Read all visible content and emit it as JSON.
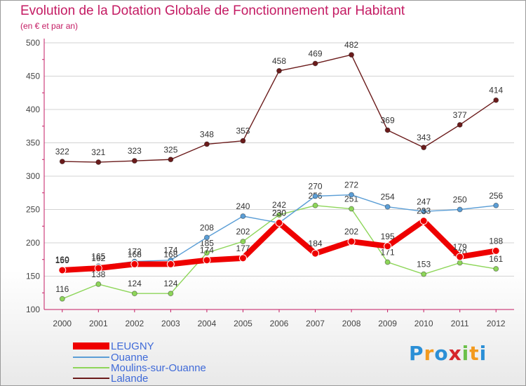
{
  "header": {
    "title": "Evolution de la Dotation Globale de Fonctionnement par Habitant",
    "subtitle": "(en € et par an)"
  },
  "colors": {
    "title": "#c41b63",
    "axis": "#c41b63",
    "grid": "#d3d3d3",
    "legend_text": "#3f6ad8",
    "data_label": "#333333"
  },
  "chart_data": {
    "type": "line",
    "x": [
      "2000",
      "2001",
      "2002",
      "2003",
      "2004",
      "2005",
      "2006",
      "2007",
      "2008",
      "2009",
      "2010",
      "2011",
      "2012"
    ],
    "ylim": [
      100,
      500
    ],
    "yticks": [
      100,
      150,
      200,
      250,
      300,
      350,
      400,
      450,
      500
    ],
    "grid": true,
    "legend_position": "bottom-left",
    "series": [
      {
        "name": "Lalande",
        "color": "#6b1b1b",
        "values": [
          322,
          321,
          323,
          325,
          348,
          353,
          458,
          469,
          482,
          369,
          343,
          377,
          414
        ]
      },
      {
        "name": "Moulins-sur-Ouanne",
        "color": "#8ed65a",
        "values": [
          116,
          138,
          124,
          124,
          185,
          202,
          242,
          256,
          251,
          171,
          153,
          170,
          161
        ]
      },
      {
        "name": "Ouanne",
        "color": "#5b9ed6",
        "values": [
          160,
          165,
          172,
          174,
          208,
          240,
          230,
          270,
          272,
          254,
          247,
          250,
          256
        ]
      },
      {
        "name": "LEUGNY",
        "color": "#ee0000",
        "values": [
          159,
          162,
          168,
          168,
          174,
          177,
          230,
          184,
          202,
          195,
          233,
          179,
          188
        ]
      }
    ]
  },
  "legend": {
    "items": [
      "LEUGNY",
      "Ouanne",
      "Moulins-sur-Ouanne",
      "Lalande"
    ]
  },
  "brand": {
    "letters": [
      "P",
      "r",
      "o",
      "x",
      "i",
      "t",
      "i"
    ],
    "colors": [
      "#2b8fd6",
      "#f39a1e",
      "#2b8fd6",
      "#d6262c",
      "#6cc04a",
      "#f39a1e",
      "#2b8fd6"
    ]
  }
}
